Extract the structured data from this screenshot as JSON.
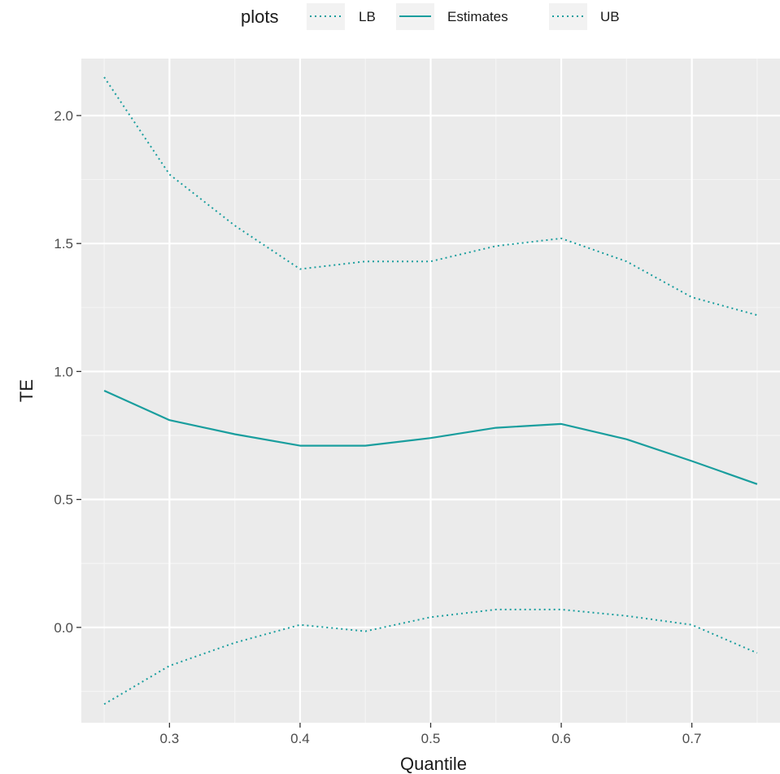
{
  "chart_data": {
    "type": "line",
    "x": [
      0.25,
      0.3,
      0.35,
      0.4,
      0.45,
      0.5,
      0.55,
      0.6,
      0.65,
      0.7,
      0.75
    ],
    "series": [
      {
        "name": "LB",
        "linetype": "dotted",
        "color": "#1a9e9e",
        "values": [
          -0.3,
          -0.15,
          -0.06,
          0.01,
          -0.015,
          0.04,
          0.07,
          0.07,
          0.045,
          0.01,
          -0.1
        ]
      },
      {
        "name": "Estimates",
        "linetype": "solid",
        "color": "#1a9e9e",
        "values": [
          0.925,
          0.81,
          0.755,
          0.71,
          0.71,
          0.74,
          0.78,
          0.795,
          0.735,
          0.65,
          0.56
        ]
      },
      {
        "name": "UB",
        "linetype": "dotted",
        "color": "#1a9e9e",
        "values": [
          2.15,
          1.77,
          1.57,
          1.4,
          1.43,
          1.43,
          1.49,
          1.52,
          1.43,
          1.29,
          1.22
        ]
      }
    ],
    "legend_title": "plots",
    "legend_position": "top",
    "xlabel": "Quantile",
    "ylabel": "TE",
    "xlim": [
      0.2325,
      0.7675
    ],
    "ylim": [
      -0.3725,
      2.2225
    ],
    "xticks": [
      0.3,
      0.4,
      0.5,
      0.6,
      0.7
    ],
    "xtick_labels": [
      "0.3",
      "0.4",
      "0.5",
      "0.6",
      "0.7"
    ],
    "yticks": [
      0.0,
      0.5,
      1.0,
      1.5,
      2.0
    ],
    "ytick_labels": [
      "0.0",
      "0.5",
      "1.0",
      "1.5",
      "2.0"
    ],
    "panel_background": "#ebebeb",
    "grid": true
  }
}
